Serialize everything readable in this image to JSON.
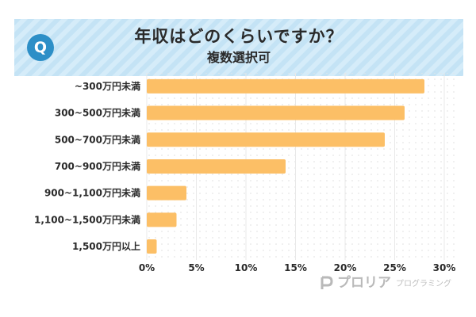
{
  "header": {
    "icon_letter": "Q",
    "title": "年収はどのくらいですか？",
    "subtitle": "複数選択可"
  },
  "logo": {
    "name": "プロリア",
    "sub": "プログラミング"
  },
  "colors": {
    "bar": "#fcbf66",
    "header_band": "#cfe9f8",
    "icon": "#2d8fc7",
    "text": "#2a2a2a"
  },
  "chart_data": {
    "type": "bar",
    "orientation": "horizontal",
    "title": "年収はどのくらいですか？",
    "subtitle": "複数選択可",
    "categories": [
      "~300万円未満",
      "300~500万円未満",
      "500~700万円未満",
      "700~900万円未満",
      "900~1,100万円未満",
      "1,100~1,500万円未満",
      "1,500万円以上"
    ],
    "values": [
      28,
      26,
      24,
      14,
      4,
      3,
      1
    ],
    "xlim": [
      0,
      30
    ],
    "ticks": [
      "0%",
      "5%",
      "10%",
      "15%",
      "20%",
      "25%",
      "30%"
    ],
    "unit": "%",
    "grid": true
  }
}
